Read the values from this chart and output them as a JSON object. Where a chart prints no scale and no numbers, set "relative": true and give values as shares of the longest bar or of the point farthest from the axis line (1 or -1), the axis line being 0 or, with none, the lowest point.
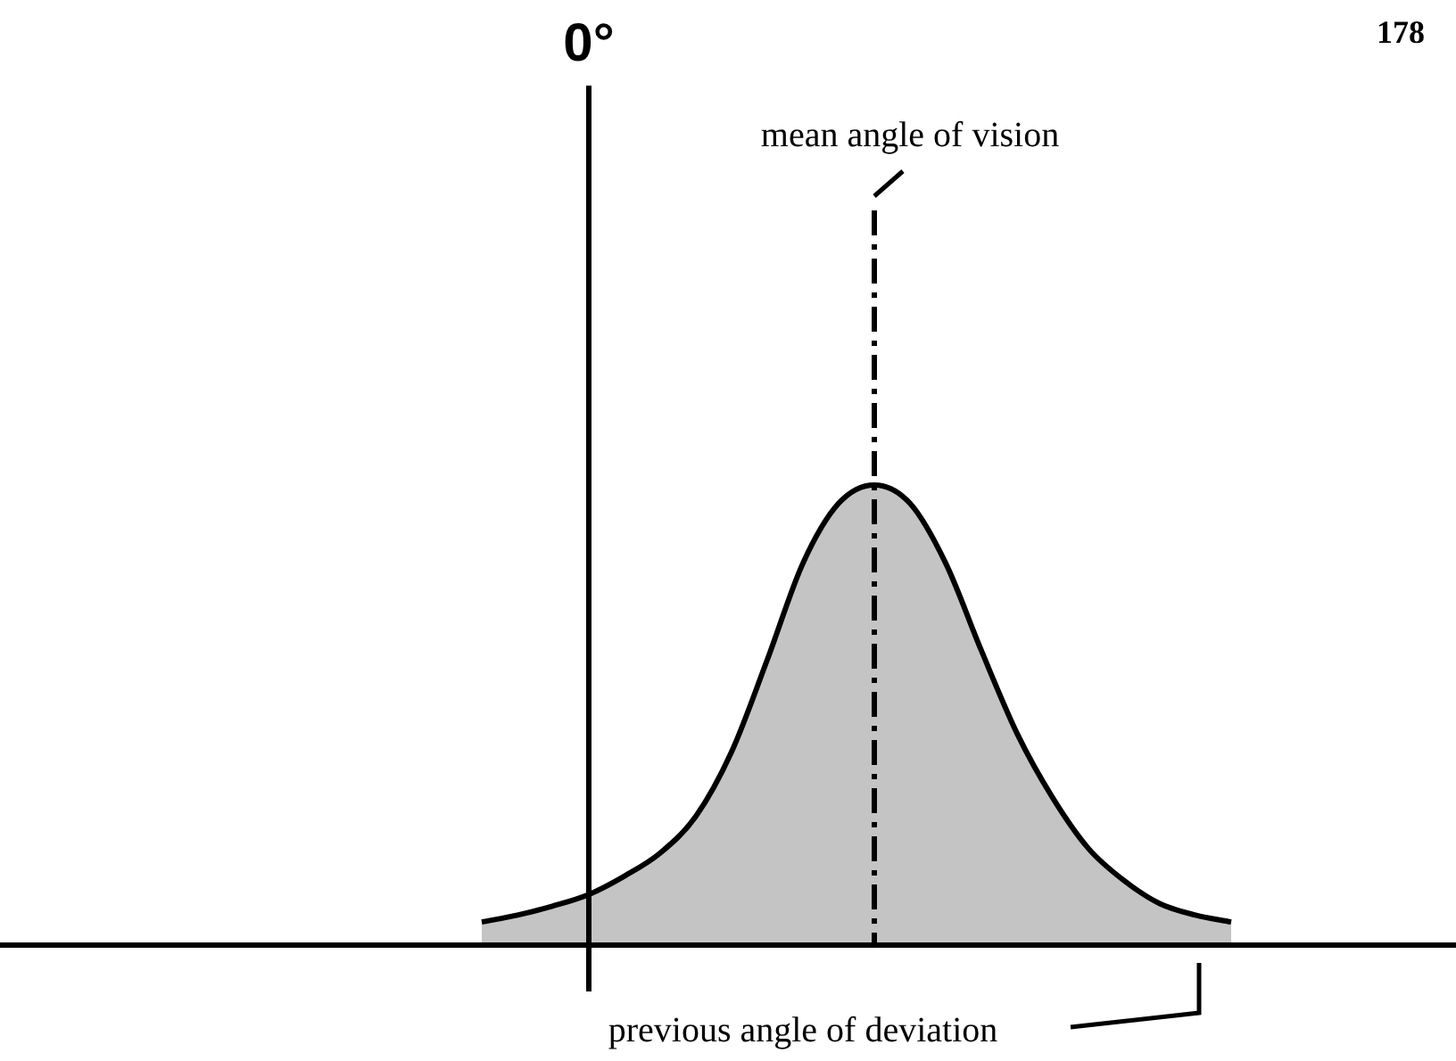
{
  "chart_data": {
    "type": "area",
    "relative": true,
    "categories": [
      null,
      null,
      null,
      null,
      null,
      null,
      null,
      null,
      null,
      null,
      null,
      null,
      null,
      null,
      null,
      null,
      null,
      null,
      null,
      null,
      null,
      null
    ],
    "series": [
      {
        "color": "#c4c4c4",
        "values": [
          0.05,
          0.065,
          0.085,
          0.11,
          0.15,
          0.2,
          0.28,
          0.42,
          0.62,
          0.83,
          0.96,
          1,
          0.96,
          0.83,
          0.64,
          0.46,
          0.32,
          0.21,
          0.14,
          0.09,
          0.065,
          0.05
        ]
      }
    ],
    "annotations": [
      "0°",
      "mean angle of vision",
      "previous angle of deviation",
      "178"
    ],
    "legend": false
  }
}
